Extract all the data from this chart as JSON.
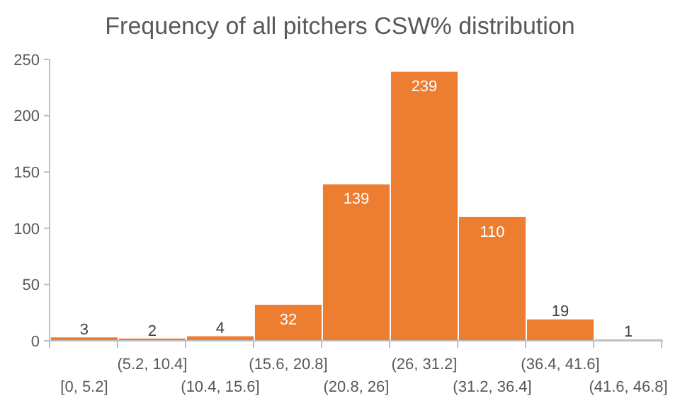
{
  "chart_data": {
    "type": "bar",
    "title": "Frequency of all pitchers CSW% distribution",
    "categories": [
      "[0, 5.2]",
      "(5.2, 10.4]",
      "(10.4, 15.6]",
      "(15.6, 20.8]",
      "(20.8, 26]",
      "(26, 31.2]",
      "(31.2, 36.4]",
      "(36.4, 41.6]",
      "(41.6, 46.8]"
    ],
    "values": [
      3,
      2,
      4,
      32,
      139,
      239,
      110,
      19,
      1
    ],
    "color": "#ed7d31",
    "ylim": [
      0,
      250
    ],
    "yticks": [
      0,
      50,
      100,
      150,
      200,
      250
    ],
    "grid": false,
    "data_labels": true
  }
}
